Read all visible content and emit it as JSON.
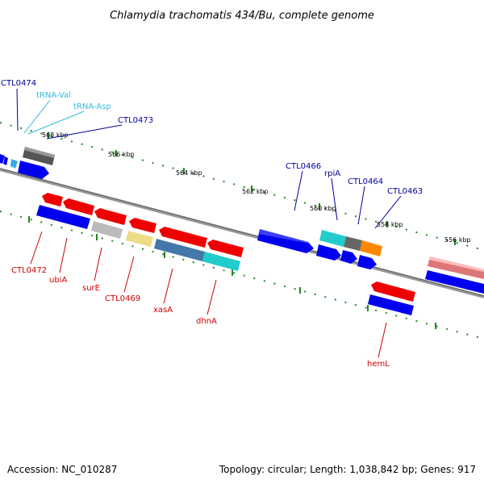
{
  "title": "Chlamydia trachomatis 434/Bu, complete genome",
  "footer": {
    "accession": "Accession: NC_010287",
    "summary": "Topology: circular; Length: 1,038,842 bp; Genes: 917"
  },
  "ticks": [
    "568 kbp",
    "566 kbp",
    "564 kbp",
    "562 kbp",
    "560 kbp",
    "558 kbp",
    "556 kbp"
  ],
  "labels_top": [
    {
      "text": "CTL0474",
      "color": "#000099"
    },
    {
      "text": "tRNA-Val",
      "color": "#33bbdd"
    },
    {
      "text": "tRNA-Asp",
      "color": "#33bbdd"
    },
    {
      "text": "CTL0473",
      "color": "#000099"
    },
    {
      "text": "CTL0466",
      "color": "#000099"
    },
    {
      "text": "rpiA",
      "color": "#000099"
    },
    {
      "text": "CTL0464",
      "color": "#000099"
    },
    {
      "text": "CTL0463",
      "color": "#000099"
    }
  ],
  "labels_bottom": [
    {
      "text": "CTL0472",
      "color": "#cc0000"
    },
    {
      "text": "ubiA",
      "color": "#cc0000"
    },
    {
      "text": "surE",
      "color": "#cc0000"
    },
    {
      "text": "CTL0469",
      "color": "#cc0000"
    },
    {
      "text": "xasA",
      "color": "#cc0000"
    },
    {
      "text": "dhnA",
      "color": "#cc0000"
    },
    {
      "text": "hemL",
      "color": "#cc0000"
    }
  ],
  "colors": {
    "backbone": "#808080",
    "tick_dot": "#228822",
    "blue": "#0000ee",
    "red": "#ee0000",
    "gray": "#666666",
    "lightgray": "#bbbbbb",
    "yellow": "#eedd88",
    "steel": "#4477aa",
    "cyan": "#22cccc",
    "orange": "#ff8800",
    "pink": "#dd7777",
    "trna": "#33aaee"
  }
}
